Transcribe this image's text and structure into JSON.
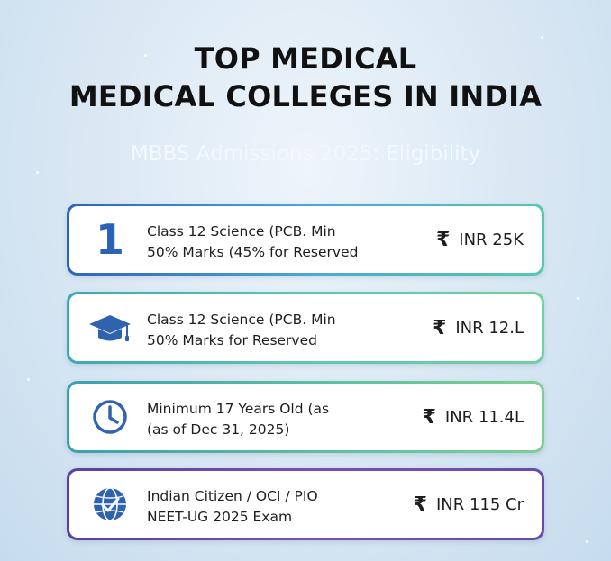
{
  "header": {
    "title_line1": "TOP MEDICAL",
    "title_line2": "MEDICAL COLLEGES IN INDIA",
    "subtitle": "MBBS Admissions 2025: Eligibility"
  },
  "colors": {
    "accent_blue": "#2a62b4",
    "accent_teal": "#55c7b2",
    "accent_purple": "#6a4aa8"
  },
  "cards": [
    {
      "icon": "number-badge",
      "icon_text": "1",
      "line1": "Class 12 Science (PCB. Min",
      "line2": "50% Marks (45% for Reserved",
      "currency": "₹",
      "price": "INR 25K"
    },
    {
      "icon": "graduation-cap-icon",
      "line1": "Class 12 Science (PCB. Min",
      "line2": "50% Marks for Reserved",
      "currency": "₹",
      "price": "INR 12.L"
    },
    {
      "icon": "clock-icon",
      "line1": "Minimum 17 Years Old (as",
      "line2": "(as of Dec 31, 2025)",
      "currency": "₹",
      "price": "INR 11.4L"
    },
    {
      "icon": "globe-check-icon",
      "line1": "Indian Citizen / OCI / PIO",
      "line2": "NEET-UG 2025 Exam",
      "currency": "₹",
      "price": "INR 115 Cr"
    }
  ]
}
